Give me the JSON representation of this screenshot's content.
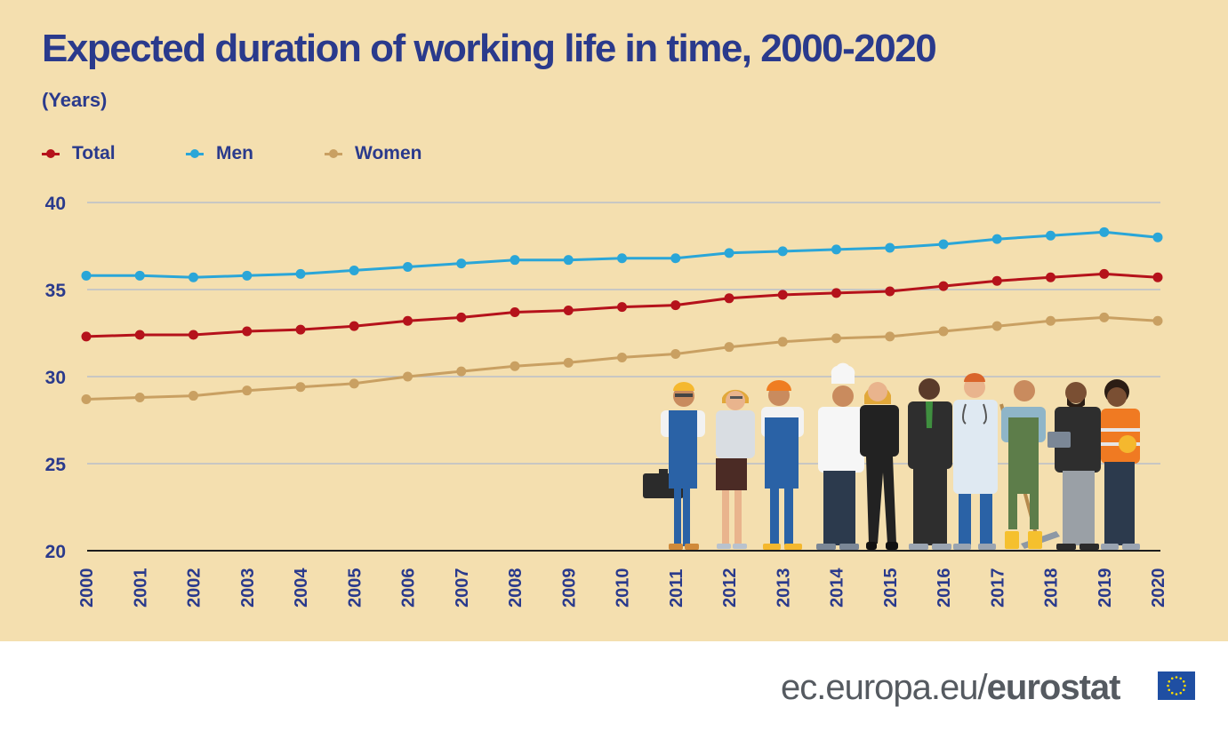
{
  "header": {
    "title": "Expected duration of working life in time, 2000-2020",
    "subtitle": "(Years)"
  },
  "legend": {
    "total": "Total",
    "men": "Men",
    "women": "Women"
  },
  "colors": {
    "background": "#f4dfaf",
    "total": "#b5121b",
    "men": "#2aa6d8",
    "women": "#c9a062",
    "text": "#2a3a8c",
    "grid": "#b9bfca"
  },
  "footer": {
    "url_prefix": "ec.europa.eu/",
    "url_brand": "eurostat",
    "flag_icon": "eu-flag-icon"
  },
  "illustration": {
    "icon": "workers-illustration",
    "figures": [
      "engineer",
      "office-worker",
      "builder",
      "chef",
      "businesswoman",
      "businessman",
      "doctor",
      "farmer",
      "manager",
      "road-worker"
    ]
  },
  "chart_data": {
    "type": "line",
    "title": "Expected duration of working life in time, 2000-2020",
    "subtitle": "(Years)",
    "xlabel": "",
    "ylabel": "",
    "x": [
      "2000",
      "2001",
      "2002",
      "2003",
      "2004",
      "2005",
      "2006",
      "2007",
      "2008",
      "2009",
      "2010",
      "2011",
      "2012",
      "2013",
      "2014",
      "2015",
      "2016",
      "2017",
      "2018",
      "2019",
      "2020"
    ],
    "series": [
      {
        "name": "Total",
        "color": "#b5121b",
        "values": [
          32.3,
          32.4,
          32.4,
          32.6,
          32.7,
          32.9,
          33.2,
          33.4,
          33.7,
          33.8,
          34.0,
          34.1,
          34.5,
          34.7,
          34.8,
          34.9,
          35.2,
          35.5,
          35.7,
          35.9,
          35.7
        ]
      },
      {
        "name": "Men",
        "color": "#2aa6d8",
        "values": [
          35.8,
          35.8,
          35.7,
          35.8,
          35.9,
          36.1,
          36.3,
          36.5,
          36.7,
          36.7,
          36.8,
          36.8,
          37.1,
          37.2,
          37.3,
          37.4,
          37.6,
          37.9,
          38.1,
          38.3,
          38.0
        ]
      },
      {
        "name": "Women",
        "color": "#c9a062",
        "values": [
          28.7,
          28.8,
          28.9,
          29.2,
          29.4,
          29.6,
          30.0,
          30.3,
          30.6,
          30.8,
          31.1,
          31.3,
          31.7,
          32.0,
          32.2,
          32.3,
          32.6,
          32.9,
          33.2,
          33.4,
          33.2
        ]
      }
    ],
    "ylim": [
      20,
      40
    ],
    "yticks": [
      "20",
      "25",
      "30",
      "35",
      "40"
    ],
    "grid": "horizontal",
    "legend_position": "top-left"
  }
}
